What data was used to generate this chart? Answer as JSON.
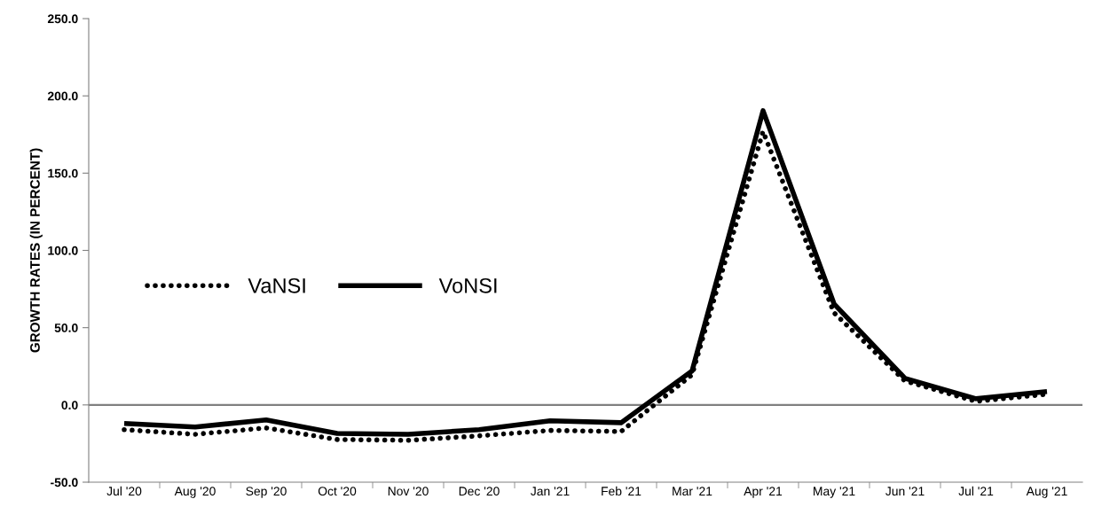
{
  "chart_data": {
    "type": "line",
    "ylabel": "GROWTH RATES (IN PERCENT)",
    "categories": [
      "Jul '20",
      "Aug '20",
      "Sep '20",
      "Oct '20",
      "Nov '20",
      "Dec '20",
      "Jan '21",
      "Feb '21",
      "Mar '21",
      "Apr '21",
      "May '21",
      "Jun '21",
      "Jul '21",
      "Aug '21"
    ],
    "series": [
      {
        "name": "VaNSI",
        "color": "#000000",
        "line_style": "dotted",
        "values": [
          -16,
          -19,
          -14.9,
          -22.4,
          -22.9,
          -20,
          -16.5,
          -17.2,
          19.5,
          177,
          59.6,
          15.5,
          2.3,
          6.9
        ]
      },
      {
        "name": "VoNSI",
        "color": "#000000",
        "line_style": "solid",
        "values": [
          -12,
          -14.3,
          -9.7,
          -18.4,
          -19,
          -16,
          -10.3,
          -11.5,
          22,
          190.4,
          65.4,
          17.2,
          4,
          8.6
        ]
      }
    ],
    "ylim": [
      -50,
      250
    ],
    "yticks": [
      {
        "value": -50,
        "label": "-50.0"
      },
      {
        "value": 0,
        "label": "0.0"
      },
      {
        "value": 50,
        "label": "50.0"
      },
      {
        "value": 100,
        "label": "100.0"
      },
      {
        "value": 150,
        "label": "150.0"
      },
      {
        "value": 200,
        "label": "200.0"
      },
      {
        "value": 250,
        "label": "250.0"
      }
    ],
    "ref_lines": [
      {
        "axis": "y",
        "value": 0,
        "color": "#808080"
      }
    ],
    "grid": false,
    "legend": "left",
    "marker": "none"
  }
}
